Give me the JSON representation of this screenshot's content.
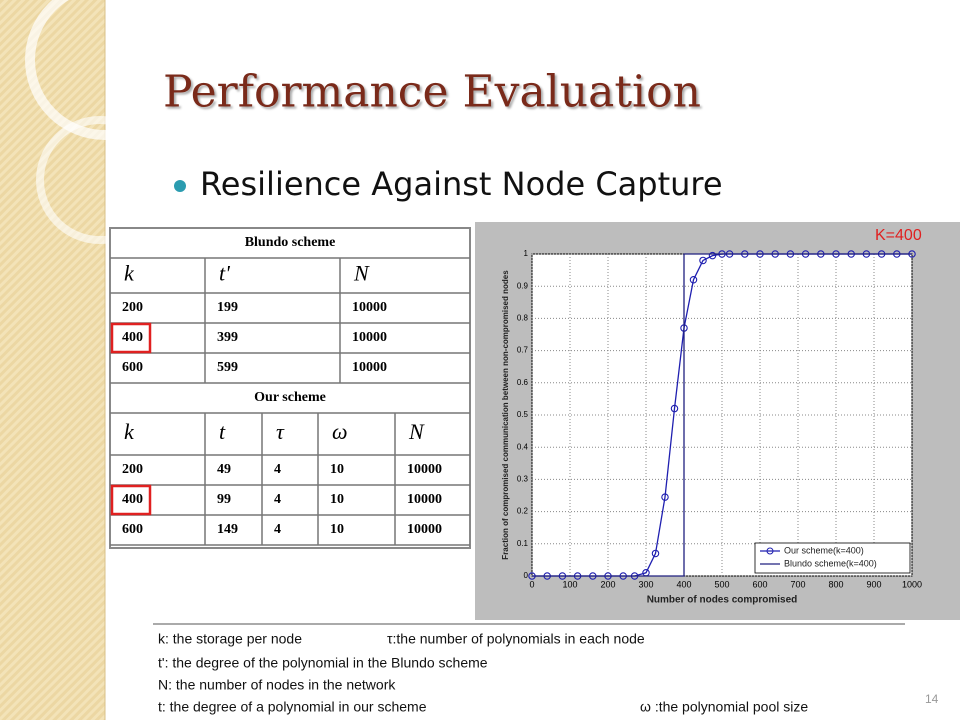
{
  "title": "Performance Evaluation",
  "bullet": "Resilience Against Node Capture",
  "tables": {
    "blundo": {
      "title": "Blundo scheme",
      "headers": [
        "k",
        "t'",
        "N"
      ],
      "rows": [
        [
          200,
          199,
          10000
        ],
        [
          400,
          399,
          10000
        ],
        [
          600,
          599,
          10000
        ]
      ]
    },
    "ours": {
      "title": "Our scheme",
      "headers": [
        "k",
        "t",
        "τ",
        "ω",
        "N"
      ],
      "rows": [
        [
          200,
          49,
          4,
          10,
          10000
        ],
        [
          400,
          99,
          4,
          10,
          10000
        ],
        [
          600,
          149,
          4,
          10,
          10000
        ]
      ]
    }
  },
  "chart_data": {
    "type": "line",
    "xlabel": "Number of nodes compromised",
    "ylabel": "Fraction of compromised communication between non-compromised nodes",
    "annotation": "K=400",
    "xlim": [
      0,
      1000
    ],
    "xticks": [
      0,
      100,
      200,
      300,
      400,
      500,
      600,
      700,
      800,
      900,
      1000
    ],
    "ylim": [
      0,
      1
    ],
    "yticks": [
      0,
      0.1,
      0.2,
      0.3,
      0.4,
      0.5,
      0.6,
      0.7,
      0.8,
      0.9,
      1
    ],
    "grid": true,
    "legend": "lower right",
    "series": [
      {
        "name": "Our scheme(k=400)",
        "color": "#1f1fb0",
        "marker": "circle",
        "x": [
          0,
          40,
          80,
          120,
          160,
          200,
          240,
          270,
          300,
          325,
          350,
          375,
          400,
          425,
          450,
          475,
          500,
          520,
          560,
          600,
          640,
          680,
          720,
          760,
          800,
          840,
          880,
          920,
          960,
          1000
        ],
        "values": [
          0,
          0,
          0,
          0,
          0,
          0,
          0,
          0,
          0.01,
          0.07,
          0.245,
          0.52,
          0.77,
          0.92,
          0.98,
          0.995,
          1,
          1,
          1,
          1,
          1,
          1,
          1,
          1,
          1,
          1,
          1,
          1,
          1,
          1
        ]
      },
      {
        "name": "Blundo scheme(k=400)",
        "color": "#202080",
        "marker": "none",
        "x": [
          0,
          400,
          400,
          1000
        ],
        "values": [
          0,
          0,
          1,
          1
        ]
      }
    ]
  },
  "notes": [
    "k: the storage per node",
    "τ:the number of polynomials in each node",
    "t': the degree of the polynomial in the Blundo scheme",
    "N: the number of nodes in the network",
    "t: the degree of a polynomial in our scheme",
    "ω :the polynomial pool size"
  ],
  "page_number": "14"
}
